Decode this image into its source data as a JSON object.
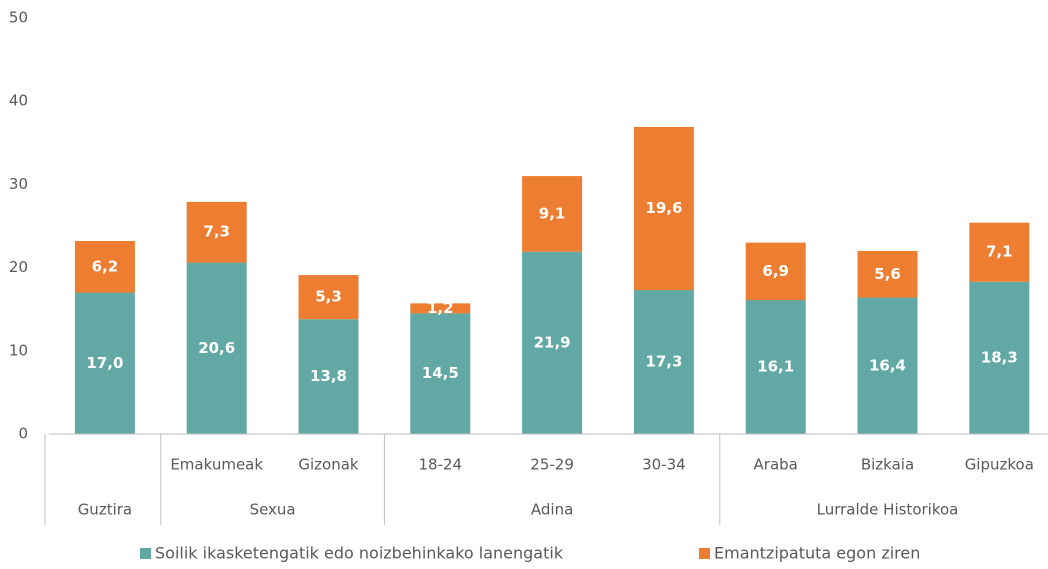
{
  "chart_data": {
    "type": "stacked_bar",
    "categories": [
      null,
      "Emakumeak",
      "Gizonak",
      "18-24",
      "25-29",
      "30-34",
      "Araba",
      "Bizkaia",
      "Gipuzkoa"
    ],
    "groups": [
      {
        "label": "Guztira",
        "span": 1
      },
      {
        "label": "Sexua",
        "span": 2
      },
      {
        "label": "Adina",
        "span": 3
      },
      {
        "label": "Lurralde Historikoa",
        "span": 3
      }
    ],
    "series": [
      {
        "name": "Soilik ikasketengatik edo noizbehinkako lanengatik",
        "color": "#62a8a5",
        "values": [
          17.0,
          20.6,
          13.8,
          14.5,
          21.9,
          17.3,
          16.1,
          16.4,
          18.3
        ],
        "value_labels": [
          "17,0",
          "20,6",
          "13,8",
          "14,5",
          "21,9",
          "17,3",
          "16,1",
          "16,4",
          "18,3"
        ]
      },
      {
        "name": "Emantzipatuta egon ziren",
        "color": "#ed7d31",
        "values": [
          6.2,
          7.3,
          5.3,
          1.2,
          9.1,
          19.6,
          6.9,
          5.6,
          7.1
        ],
        "value_labels": [
          "6,2",
          "7,3",
          "5,3",
          "1,2",
          "9,1",
          "19,6",
          "6,9",
          "5,6",
          "7,1"
        ]
      }
    ],
    "ylim": [
      0,
      50
    ],
    "yticks": [
      0,
      10,
      20,
      30,
      40,
      50
    ],
    "grid": false
  }
}
